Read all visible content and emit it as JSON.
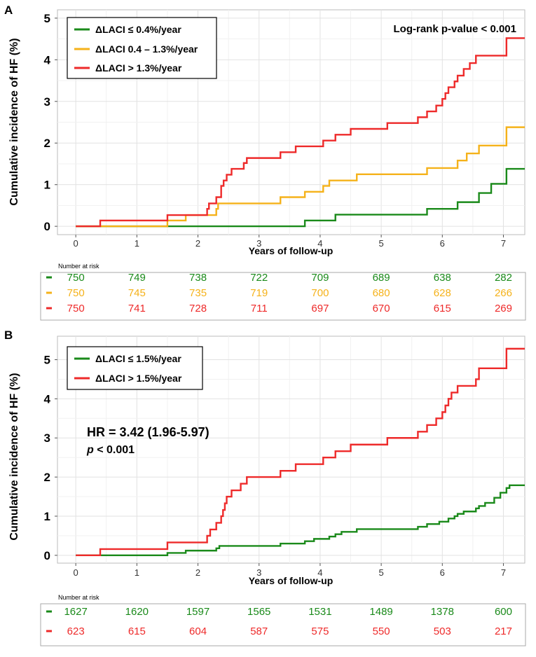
{
  "chart_data": [
    {
      "type": "line",
      "panel": "A",
      "title": "",
      "xlabel": "Years of follow-up",
      "ylabel": "Cumulative incidence of HF (%)",
      "xlim": [
        -0.3,
        7.35
      ],
      "ylim": [
        -0.2,
        5.2
      ],
      "xticks": [
        0,
        1,
        2,
        3,
        4,
        5,
        6,
        7
      ],
      "yticks": [
        0,
        1,
        2,
        3,
        4,
        5
      ],
      "grid": true,
      "legend_position": "top-left",
      "annotation": "Log-rank p-value < 0.001",
      "series": [
        {
          "name": "ΔLACI ≤ 0.4%/year",
          "color": "#1a8a1a",
          "steps": [
            [
              0,
              0
            ],
            [
              1.5,
              0
            ],
            [
              3.75,
              0.14
            ],
            [
              4.25,
              0.28
            ],
            [
              5.75,
              0.42
            ],
            [
              6.25,
              0.58
            ],
            [
              6.6,
              0.8
            ],
            [
              6.8,
              1.02
            ],
            [
              7.05,
              1.38
            ],
            [
              7.35,
              1.38
            ]
          ]
        },
        {
          "name": "ΔLACI 0.4 – 1.3%/year",
          "color": "#f5b21a",
          "steps": [
            [
              0,
              0
            ],
            [
              1.5,
              0.14
            ],
            [
              1.8,
              0.27
            ],
            [
              2.3,
              0.42
            ],
            [
              2.33,
              0.55
            ],
            [
              3.35,
              0.7
            ],
            [
              3.75,
              0.83
            ],
            [
              4.05,
              0.97
            ],
            [
              4.15,
              1.1
            ],
            [
              4.6,
              1.25
            ],
            [
              5.75,
              1.4
            ],
            [
              6.25,
              1.58
            ],
            [
              6.4,
              1.75
            ],
            [
              6.6,
              1.94
            ],
            [
              7.05,
              2.38
            ],
            [
              7.35,
              2.38
            ]
          ]
        },
        {
          "name": "ΔLACI > 1.3%/year",
          "color": "#ee2a2a",
          "steps": [
            [
              0,
              0
            ],
            [
              0.4,
              0.14
            ],
            [
              1.5,
              0.27
            ],
            [
              2.15,
              0.42
            ],
            [
              2.18,
              0.55
            ],
            [
              2.3,
              0.7
            ],
            [
              2.38,
              0.97
            ],
            [
              2.42,
              1.1
            ],
            [
              2.47,
              1.24
            ],
            [
              2.55,
              1.38
            ],
            [
              2.75,
              1.52
            ],
            [
              2.8,
              1.64
            ],
            [
              3.35,
              1.78
            ],
            [
              3.6,
              1.92
            ],
            [
              4.05,
              2.06
            ],
            [
              4.25,
              2.2
            ],
            [
              4.5,
              2.34
            ],
            [
              5.1,
              2.48
            ],
            [
              5.6,
              2.62
            ],
            [
              5.75,
              2.76
            ],
            [
              5.9,
              2.9
            ],
            [
              6.0,
              3.06
            ],
            [
              6.05,
              3.2
            ],
            [
              6.1,
              3.34
            ],
            [
              6.2,
              3.48
            ],
            [
              6.25,
              3.62
            ],
            [
              6.35,
              3.78
            ],
            [
              6.45,
              3.92
            ],
            [
              6.55,
              4.1
            ],
            [
              7.05,
              4.52
            ],
            [
              7.35,
              4.52
            ]
          ]
        }
      ],
      "risk_table": {
        "title": "Number at risk",
        "times": [
          0,
          1,
          2,
          3,
          4,
          5,
          6,
          7
        ],
        "rows": [
          {
            "color": "#1a8a1a",
            "values": [
              "750",
              "749",
              "738",
              "722",
              "709",
              "689",
              "638",
              "282"
            ]
          },
          {
            "color": "#f5b21a",
            "values": [
              "750",
              "745",
              "735",
              "719",
              "700",
              "680",
              "628",
              "266"
            ]
          },
          {
            "color": "#ee2a2a",
            "values": [
              "750",
              "741",
              "728",
              "711",
              "697",
              "670",
              "615",
              "269"
            ]
          }
        ]
      }
    },
    {
      "type": "line",
      "panel": "B",
      "title": "",
      "xlabel": "Years of follow-up",
      "ylabel": "Cumulative incidence of HF (%)",
      "xlim": [
        -0.3,
        7.35
      ],
      "ylim": [
        -0.2,
        5.6
      ],
      "xticks": [
        0,
        1,
        2,
        3,
        4,
        5,
        6,
        7
      ],
      "yticks": [
        0,
        1,
        2,
        3,
        4,
        5
      ],
      "grid": true,
      "legend_position": "top-left",
      "annotation_hr": "HR = 3.42 (1.96-5.97)",
      "annotation_p_symbol": "p",
      "annotation_p_rest": " < 0.001",
      "series": [
        {
          "name": "ΔLACI ≤ 1.5%/year",
          "color": "#1a8a1a",
          "steps": [
            [
              0,
              0
            ],
            [
              1.5,
              0.06
            ],
            [
              1.8,
              0.12
            ],
            [
              2.3,
              0.18
            ],
            [
              2.35,
              0.24
            ],
            [
              3.35,
              0.3
            ],
            [
              3.75,
              0.36
            ],
            [
              3.9,
              0.42
            ],
            [
              4.15,
              0.48
            ],
            [
              4.25,
              0.54
            ],
            [
              4.35,
              0.6
            ],
            [
              4.6,
              0.67
            ],
            [
              5.6,
              0.73
            ],
            [
              5.75,
              0.8
            ],
            [
              5.95,
              0.86
            ],
            [
              6.1,
              0.94
            ],
            [
              6.2,
              1.0
            ],
            [
              6.25,
              1.06
            ],
            [
              6.35,
              1.12
            ],
            [
              6.55,
              1.2
            ],
            [
              6.6,
              1.26
            ],
            [
              6.7,
              1.34
            ],
            [
              6.85,
              1.47
            ],
            [
              6.95,
              1.6
            ],
            [
              7.05,
              1.72
            ],
            [
              7.1,
              1.79
            ],
            [
              7.35,
              1.79
            ]
          ]
        },
        {
          "name": "ΔLACI > 1.5%/year",
          "color": "#ee2a2a",
          "steps": [
            [
              0,
              0
            ],
            [
              0.4,
              0.16
            ],
            [
              1.5,
              0.33
            ],
            [
              2.15,
              0.5
            ],
            [
              2.2,
              0.66
            ],
            [
              2.3,
              0.83
            ],
            [
              2.38,
              1.0
            ],
            [
              2.41,
              1.16
            ],
            [
              2.44,
              1.33
            ],
            [
              2.47,
              1.5
            ],
            [
              2.55,
              1.66
            ],
            [
              2.7,
              1.83
            ],
            [
              2.8,
              2.0
            ],
            [
              3.35,
              2.16
            ],
            [
              3.6,
              2.33
            ],
            [
              4.05,
              2.5
            ],
            [
              4.25,
              2.66
            ],
            [
              4.5,
              2.83
            ],
            [
              5.1,
              3.0
            ],
            [
              5.6,
              3.16
            ],
            [
              5.75,
              3.33
            ],
            [
              5.9,
              3.5
            ],
            [
              6.0,
              3.66
            ],
            [
              6.05,
              3.83
            ],
            [
              6.1,
              4.0
            ],
            [
              6.15,
              4.16
            ],
            [
              6.25,
              4.33
            ],
            [
              6.55,
              4.5
            ],
            [
              6.6,
              4.78
            ],
            [
              7.05,
              5.28
            ],
            [
              7.35,
              5.28
            ]
          ]
        }
      ],
      "risk_table": {
        "title": "Number at risk",
        "times": [
          0,
          1,
          2,
          3,
          4,
          5,
          6,
          7
        ],
        "rows": [
          {
            "color": "#1a8a1a",
            "values": [
              "1627",
              "1620",
              "1597",
              "1565",
              "1531",
              "1489",
              "1378",
              "600"
            ]
          },
          {
            "color": "#ee2a2a",
            "values": [
              "623",
              "615",
              "604",
              "587",
              "575",
              "550",
              "503",
              "217"
            ]
          }
        ]
      }
    }
  ]
}
